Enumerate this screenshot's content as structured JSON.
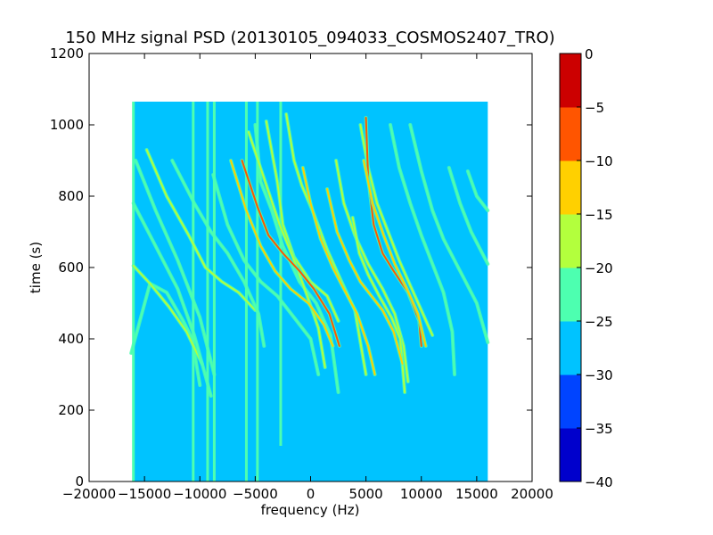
{
  "chart_data": {
    "type": "heatmap",
    "title": "150 MHz signal PSD (20130105_094033_COSMOS2407_TRO)",
    "xlabel": "frequency (Hz)",
    "ylabel": "time (s)",
    "xlim": [
      -20000,
      20000
    ],
    "ylim": [
      0,
      1200
    ],
    "x_ticks": [
      -20000,
      -15000,
      -10000,
      -5000,
      0,
      5000,
      10000,
      15000,
      20000
    ],
    "x_tick_labels": [
      "−20000",
      "−15000",
      "−10000",
      "−5000",
      "0",
      "5000",
      "10000",
      "15000",
      "20000"
    ],
    "y_ticks": [
      0,
      200,
      400,
      600,
      800,
      1000,
      1200
    ],
    "y_tick_labels": [
      "0",
      "200",
      "400",
      "600",
      "800",
      "1000",
      "1200"
    ],
    "data_extent": {
      "freq_hz": [
        -16000,
        16000
      ],
      "time_s": [
        0,
        1065
      ]
    },
    "background_level": -27.5,
    "colorbar": {
      "levels": [
        -40,
        -35,
        -30,
        -25,
        -20,
        -15,
        -10,
        -5,
        0
      ],
      "tick_labels": [
        "−40",
        "−35",
        "−30",
        "−25",
        "−20",
        "−15",
        "−10",
        "−5",
        "0"
      ],
      "colors": [
        "#0000cc",
        "#0044ff",
        "#00c3ff",
        "#4dffb0",
        "#b3ff3d",
        "#ffd000",
        "#ff5500",
        "#cc0000"
      ]
    },
    "vertical_lines": [
      {
        "freq": -16000,
        "t0": 0,
        "t1": 1065,
        "level": -22.5
      },
      {
        "freq": -10600,
        "t0": 0,
        "t1": 1065,
        "level": -22.5
      },
      {
        "freq": -9300,
        "t0": 0,
        "t1": 1065,
        "level": -22.5
      },
      {
        "freq": -8700,
        "t0": 0,
        "t1": 1065,
        "level": -22.5
      },
      {
        "freq": -5800,
        "t0": 0,
        "t1": 1065,
        "level": -22.5
      },
      {
        "freq": -4800,
        "t0": 0,
        "t1": 1065,
        "level": -22.5
      },
      {
        "freq": -2700,
        "t0": 100,
        "t1": 1065,
        "level": -22.5
      }
    ],
    "tracks": [
      {
        "points": [
          [
            -16200,
            360
          ],
          [
            -14500,
            555
          ],
          [
            -13000,
            530
          ],
          [
            -11500,
            450
          ],
          [
            -10700,
            400
          ],
          [
            -10000,
            270
          ]
        ],
        "level": -22.5
      },
      {
        "points": [
          [
            -16000,
            605
          ],
          [
            -14500,
            555
          ],
          [
            -12800,
            490
          ],
          [
            -11200,
            420
          ],
          [
            -9800,
            330
          ]
        ],
        "level": -17.5
      },
      {
        "points": [
          [
            -16000,
            780
          ],
          [
            -14000,
            660
          ],
          [
            -12000,
            540
          ],
          [
            -10500,
            410
          ],
          [
            -9000,
            240
          ]
        ],
        "level": -22.5
      },
      {
        "points": [
          [
            -15800,
            900
          ],
          [
            -14000,
            760
          ],
          [
            -12000,
            620
          ],
          [
            -10000,
            460
          ],
          [
            -8700,
            300
          ]
        ],
        "level": -22.5
      },
      {
        "points": [
          [
            -14800,
            930
          ],
          [
            -13000,
            800
          ],
          [
            -11000,
            690
          ],
          [
            -9500,
            600
          ],
          [
            -8000,
            560
          ],
          [
            -6500,
            530
          ],
          [
            -5000,
            480
          ]
        ],
        "level": -17.5
      },
      {
        "points": [
          [
            -12500,
            900
          ],
          [
            -10500,
            780
          ],
          [
            -9000,
            700
          ],
          [
            -7500,
            640
          ],
          [
            -6000,
            560
          ],
          [
            -4700,
            470
          ],
          [
            -4200,
            380
          ]
        ],
        "level": -22.5
      },
      {
        "points": [
          [
            -8800,
            860
          ],
          [
            -7500,
            720
          ],
          [
            -6000,
            620
          ],
          [
            -4500,
            560
          ],
          [
            -3000,
            520
          ],
          [
            -1500,
            460
          ],
          [
            0,
            400
          ],
          [
            700,
            300
          ]
        ],
        "level": -22.5
      },
      {
        "points": [
          [
            -5000,
            1000
          ],
          [
            -4500,
            840
          ],
          [
            -3500,
            760
          ],
          [
            -2500,
            660
          ],
          [
            -1000,
            560
          ],
          [
            500,
            500
          ],
          [
            1800,
            410
          ],
          [
            2500,
            250
          ]
        ],
        "level": -22.5
      },
      {
        "points": [
          [
            -4000,
            1010
          ],
          [
            -3000,
            840
          ],
          [
            -2500,
            720
          ],
          [
            -1500,
            630
          ],
          [
            0,
            560
          ],
          [
            1500,
            520
          ],
          [
            2500,
            450
          ]
        ],
        "level": -17.5
      },
      {
        "points": [
          [
            -5600,
            980
          ],
          [
            -4200,
            850
          ],
          [
            -2800,
            720
          ],
          [
            -1600,
            630
          ],
          [
            -300,
            520
          ],
          [
            700,
            430
          ],
          [
            1300,
            320
          ]
        ],
        "level": -17.5
      },
      {
        "points": [
          [
            -2200,
            1030
          ],
          [
            -1500,
            900
          ],
          [
            -800,
            830
          ],
          [
            300,
            750
          ],
          [
            1500,
            650
          ],
          [
            2800,
            560
          ],
          [
            4000,
            480
          ],
          [
            5000,
            300
          ]
        ],
        "level": -17.5
      },
      {
        "points": [
          [
            -7200,
            900
          ],
          [
            -5800,
            760
          ],
          [
            -4500,
            660
          ],
          [
            -3200,
            590
          ],
          [
            -1800,
            540
          ],
          [
            -200,
            500
          ],
          [
            1200,
            440
          ],
          [
            2000,
            380
          ]
        ],
        "level": -12.5
      },
      {
        "points": [
          [
            -6200,
            900
          ],
          [
            -4800,
            770
          ],
          [
            -3800,
            690
          ],
          [
            -2500,
            640
          ],
          [
            -1000,
            590
          ],
          [
            300,
            540
          ],
          [
            1700,
            470
          ],
          [
            2600,
            380
          ]
        ],
        "level": -7.5
      },
      {
        "points": [
          [
            -700,
            880
          ],
          [
            0,
            780
          ],
          [
            900,
            680
          ],
          [
            2000,
            600
          ],
          [
            3000,
            540
          ],
          [
            4200,
            470
          ],
          [
            5200,
            380
          ],
          [
            5800,
            300
          ]
        ],
        "level": -12.5
      },
      {
        "points": [
          [
            2300,
            900
          ],
          [
            3000,
            780
          ],
          [
            4000,
            690
          ],
          [
            5200,
            610
          ],
          [
            6500,
            540
          ],
          [
            7600,
            470
          ],
          [
            8400,
            380
          ],
          [
            8800,
            280
          ]
        ],
        "level": -17.5
      },
      {
        "points": [
          [
            4500,
            1000
          ],
          [
            5200,
            880
          ],
          [
            6000,
            780
          ],
          [
            7000,
            700
          ],
          [
            8000,
            620
          ],
          [
            9000,
            550
          ],
          [
            10000,
            480
          ],
          [
            11000,
            410
          ]
        ],
        "level": -17.5
      },
      {
        "points": [
          [
            5000,
            1020
          ],
          [
            5200,
            850
          ],
          [
            5700,
            720
          ],
          [
            6500,
            640
          ],
          [
            7500,
            590
          ],
          [
            8800,
            530
          ],
          [
            9800,
            450
          ],
          [
            10000,
            380
          ]
        ],
        "level": -7.5
      },
      {
        "points": [
          [
            4800,
            900
          ],
          [
            5600,
            780
          ],
          [
            6600,
            690
          ],
          [
            7600,
            610
          ],
          [
            8700,
            540
          ],
          [
            9700,
            470
          ],
          [
            10400,
            380
          ]
        ],
        "level": -12.5
      },
      {
        "points": [
          [
            7200,
            1000
          ],
          [
            8000,
            880
          ],
          [
            9000,
            780
          ],
          [
            10000,
            690
          ],
          [
            11000,
            610
          ],
          [
            12000,
            530
          ],
          [
            12800,
            420
          ],
          [
            13000,
            300
          ]
        ],
        "level": -22.5
      },
      {
        "points": [
          [
            9000,
            1000
          ],
          [
            10000,
            870
          ],
          [
            11000,
            760
          ],
          [
            12000,
            680
          ],
          [
            13000,
            620
          ],
          [
            14000,
            560
          ],
          [
            15000,
            500
          ],
          [
            16000,
            390
          ]
        ],
        "level": -22.5
      },
      {
        "points": [
          [
            12500,
            880
          ],
          [
            13500,
            780
          ],
          [
            14500,
            700
          ],
          [
            15500,
            640
          ],
          [
            16000,
            610
          ]
        ],
        "level": -22.5
      },
      {
        "points": [
          [
            14200,
            870
          ],
          [
            15000,
            800
          ],
          [
            16000,
            760
          ]
        ],
        "level": -22.5
      },
      {
        "points": [
          [
            3800,
            740
          ],
          [
            4400,
            640
          ],
          [
            5200,
            580
          ],
          [
            6200,
            520
          ],
          [
            7300,
            460
          ],
          [
            8100,
            400
          ],
          [
            8500,
            250
          ]
        ],
        "level": -17.5
      },
      {
        "points": [
          [
            1500,
            820
          ],
          [
            2400,
            700
          ],
          [
            3500,
            620
          ],
          [
            4500,
            560
          ],
          [
            5500,
            520
          ],
          [
            6500,
            480
          ],
          [
            7500,
            420
          ],
          [
            8300,
            330
          ]
        ],
        "level": -12.5
      }
    ]
  }
}
